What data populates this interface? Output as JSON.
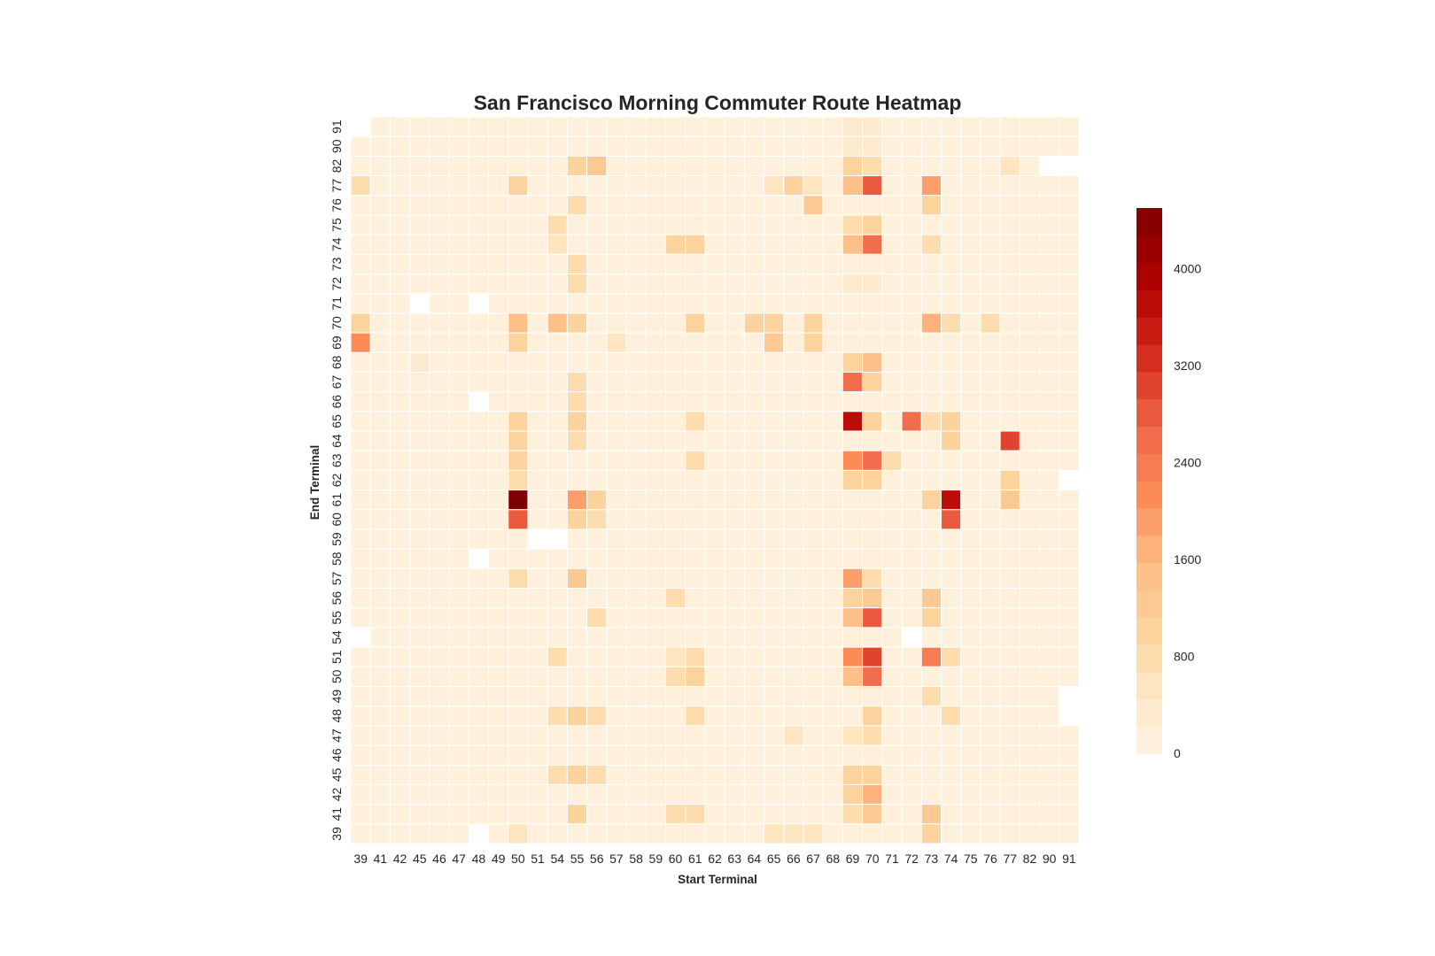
{
  "chart_data": {
    "type": "heatmap",
    "title": "San Francisco Morning Commuter Route Heatmap",
    "xlabel": "Start Terminal",
    "ylabel": "End Terminal",
    "x_categories": [
      "39",
      "41",
      "42",
      "45",
      "46",
      "47",
      "48",
      "49",
      "50",
      "51",
      "54",
      "55",
      "56",
      "57",
      "58",
      "59",
      "60",
      "61",
      "62",
      "63",
      "64",
      "65",
      "66",
      "67",
      "68",
      "69",
      "70",
      "71",
      "72",
      "73",
      "74",
      "75",
      "76",
      "77",
      "82",
      "90",
      "91"
    ],
    "y_categories": [
      "91",
      "90",
      "82",
      "77",
      "76",
      "75",
      "74",
      "73",
      "72",
      "71",
      "70",
      "69",
      "68",
      "67",
      "66",
      "65",
      "64",
      "63",
      "62",
      "61",
      "60",
      "59",
      "58",
      "57",
      "56",
      "55",
      "54",
      "51",
      "50",
      "49",
      "48",
      "47",
      "46",
      "45",
      "42",
      "41",
      "39"
    ],
    "default_value": 150,
    "cells_note": "row/column labels refer to y_categories / x_categories; null = empty cell",
    "overrides": [
      {
        "y": "91",
        "x": "45",
        "v": 150
      },
      {
        "y": "91",
        "x": "50",
        "v": 150
      },
      {
        "y": "91",
        "x": "69",
        "v": 250
      },
      {
        "y": "91",
        "x": "70",
        "v": 250
      },
      {
        "y": "90",
        "x": "39",
        "v": 150
      },
      {
        "y": "90",
        "x": "59",
        "v": 150
      },
      {
        "y": "90",
        "x": "65",
        "v": 150
      },
      {
        "y": "90",
        "x": "66",
        "v": 150
      },
      {
        "y": "90",
        "x": "67",
        "v": 150
      },
      {
        "y": "90",
        "x": "69",
        "v": 250
      },
      {
        "y": "90",
        "x": "70",
        "v": 250
      },
      {
        "y": "90",
        "x": "72",
        "v": 150
      },
      {
        "y": "90",
        "x": "76",
        "v": 150
      },
      {
        "y": "82",
        "x": "55",
        "v": 1100
      },
      {
        "y": "82",
        "x": "56",
        "v": 1300
      },
      {
        "y": "82",
        "x": "69",
        "v": 900
      },
      {
        "y": "82",
        "x": "70",
        "v": 700
      },
      {
        "y": "82",
        "x": "77",
        "v": 500
      },
      {
        "y": "77",
        "x": "39",
        "v": 800
      },
      {
        "y": "77",
        "x": "50",
        "v": 900
      },
      {
        "y": "77",
        "x": "65",
        "v": 600
      },
      {
        "y": "77",
        "x": "66",
        "v": 900
      },
      {
        "y": "77",
        "x": "67",
        "v": 600
      },
      {
        "y": "77",
        "x": "69",
        "v": 1500
      },
      {
        "y": "77",
        "x": "70",
        "v": 2700
      },
      {
        "y": "77",
        "x": "73",
        "v": 1800
      },
      {
        "y": "76",
        "x": "55",
        "v": 800
      },
      {
        "y": "76",
        "x": "67",
        "v": 1300
      },
      {
        "y": "76",
        "x": "73",
        "v": 1000
      },
      {
        "y": "76",
        "x": "90",
        "v": 150
      },
      {
        "y": "75",
        "x": "54",
        "v": 800
      },
      {
        "y": "75",
        "x": "69",
        "v": 800
      },
      {
        "y": "75",
        "x": "70",
        "v": 1100
      },
      {
        "y": "75",
        "x": "90",
        "v": 150
      },
      {
        "y": "74",
        "x": "54",
        "v": 600
      },
      {
        "y": "74",
        "x": "60",
        "v": 900
      },
      {
        "y": "74",
        "x": "61",
        "v": 900
      },
      {
        "y": "74",
        "x": "69",
        "v": 1500
      },
      {
        "y": "74",
        "x": "70",
        "v": 2600
      },
      {
        "y": "74",
        "x": "73",
        "v": 800
      },
      {
        "y": "73",
        "x": "55",
        "v": 700
      },
      {
        "y": "72",
        "x": "55",
        "v": 700
      },
      {
        "y": "72",
        "x": "69",
        "v": 350
      },
      {
        "y": "72",
        "x": "70",
        "v": 350
      },
      {
        "y": "71",
        "x": "45",
        "v": null
      },
      {
        "y": "71",
        "x": "48",
        "v": null
      },
      {
        "y": "70",
        "x": "39",
        "v": 900
      },
      {
        "y": "70",
        "x": "50",
        "v": 1400
      },
      {
        "y": "70",
        "x": "54",
        "v": 1500
      },
      {
        "y": "70",
        "x": "55",
        "v": 1100
      },
      {
        "y": "70",
        "x": "61",
        "v": 1100
      },
      {
        "y": "70",
        "x": "64",
        "v": 900
      },
      {
        "y": "70",
        "x": "65",
        "v": 1100
      },
      {
        "y": "70",
        "x": "67",
        "v": 900
      },
      {
        "y": "70",
        "x": "69",
        "v": 150
      },
      {
        "y": "70",
        "x": "70",
        "v": 150
      },
      {
        "y": "70",
        "x": "73",
        "v": 1700
      },
      {
        "y": "70",
        "x": "74",
        "v": 800
      },
      {
        "y": "70",
        "x": "76",
        "v": 700
      },
      {
        "y": "69",
        "x": "39",
        "v": 2100
      },
      {
        "y": "69",
        "x": "50",
        "v": 900
      },
      {
        "y": "69",
        "x": "65",
        "v": 1300
      },
      {
        "y": "69",
        "x": "67",
        "v": 900
      },
      {
        "y": "69",
        "x": "57",
        "v": 500
      },
      {
        "y": "69",
        "x": "69",
        "v": 150
      },
      {
        "y": "69",
        "x": "70",
        "v": 150
      },
      {
        "y": "69",
        "x": "90",
        "v": 150
      },
      {
        "y": "69",
        "x": "91",
        "v": 150
      },
      {
        "y": "68",
        "x": "45",
        "v": 400
      },
      {
        "y": "68",
        "x": "69",
        "v": 900
      },
      {
        "y": "68",
        "x": "70",
        "v": 1400
      },
      {
        "y": "67",
        "x": "55",
        "v": 800
      },
      {
        "y": "67",
        "x": "69",
        "v": 2500
      },
      {
        "y": "67",
        "x": "70",
        "v": 1100
      },
      {
        "y": "66",
        "x": "48",
        "v": null
      },
      {
        "y": "66",
        "x": "55",
        "v": 800
      },
      {
        "y": "65",
        "x": "50",
        "v": 1100
      },
      {
        "y": "65",
        "x": "55",
        "v": 1100
      },
      {
        "y": "65",
        "x": "61",
        "v": 800
      },
      {
        "y": "65",
        "x": "69",
        "v": 3600
      },
      {
        "y": "65",
        "x": "70",
        "v": 1100
      },
      {
        "y": "65",
        "x": "72",
        "v": 2500
      },
      {
        "y": "65",
        "x": "73",
        "v": 700
      },
      {
        "y": "65",
        "x": "74",
        "v": 1000
      },
      {
        "y": "65",
        "x": "91",
        "v": 150
      },
      {
        "y": "64",
        "x": "50",
        "v": 1100
      },
      {
        "y": "64",
        "x": "55",
        "v": 800
      },
      {
        "y": "64",
        "x": "74",
        "v": 900
      },
      {
        "y": "64",
        "x": "77",
        "v": 3000
      },
      {
        "y": "63",
        "x": "50",
        "v": 1000
      },
      {
        "y": "63",
        "x": "61",
        "v": 800
      },
      {
        "y": "63",
        "x": "69",
        "v": 2100
      },
      {
        "y": "63",
        "x": "70",
        "v": 2500
      },
      {
        "y": "63",
        "x": "71",
        "v": 800
      },
      {
        "y": "62",
        "x": "50",
        "v": 800
      },
      {
        "y": "62",
        "x": "69",
        "v": 900
      },
      {
        "y": "62",
        "x": "70",
        "v": 1100
      },
      {
        "y": "62",
        "x": "77",
        "v": 900
      },
      {
        "y": "62",
        "x": "91",
        "v": null
      },
      {
        "y": "62",
        "x": "90",
        "v": 150
      },
      {
        "y": "61",
        "x": "50",
        "v": 4500
      },
      {
        "y": "61",
        "x": "55",
        "v": 2000
      },
      {
        "y": "61",
        "x": "56",
        "v": 900
      },
      {
        "y": "61",
        "x": "73",
        "v": 900
      },
      {
        "y": "61",
        "x": "74",
        "v": 3800
      },
      {
        "y": "61",
        "x": "77",
        "v": 1200
      },
      {
        "y": "60",
        "x": "50",
        "v": 2700
      },
      {
        "y": "60",
        "x": "55",
        "v": 900
      },
      {
        "y": "60",
        "x": "56",
        "v": 700
      },
      {
        "y": "60",
        "x": "74",
        "v": 2800
      },
      {
        "y": "59",
        "x": "51",
        "v": null
      },
      {
        "y": "59",
        "x": "54",
        "v": null
      },
      {
        "y": "58",
        "x": "48",
        "v": null
      },
      {
        "y": "57",
        "x": "50",
        "v": 700
      },
      {
        "y": "57",
        "x": "55",
        "v": 1300
      },
      {
        "y": "57",
        "x": "69",
        "v": 1800
      },
      {
        "y": "57",
        "x": "70",
        "v": 700
      },
      {
        "y": "57",
        "x": "90",
        "v": 150
      },
      {
        "y": "56",
        "x": "60",
        "v": 800
      },
      {
        "y": "56",
        "x": "69",
        "v": 900
      },
      {
        "y": "56",
        "x": "70",
        "v": 1300
      },
      {
        "y": "56",
        "x": "73",
        "v": 1300
      },
      {
        "y": "55",
        "x": "56",
        "v": 700
      },
      {
        "y": "55",
        "x": "69",
        "v": 1400
      },
      {
        "y": "55",
        "x": "70",
        "v": 2900
      },
      {
        "y": "55",
        "x": "73",
        "v": 1100
      },
      {
        "y": "54",
        "x": "39",
        "v": null
      },
      {
        "y": "54",
        "x": "72",
        "v": null
      },
      {
        "y": "51",
        "x": "54",
        "v": 700
      },
      {
        "y": "51",
        "x": "60",
        "v": 600
      },
      {
        "y": "51",
        "x": "61",
        "v": 700
      },
      {
        "y": "51",
        "x": "69",
        "v": 2200
      },
      {
        "y": "51",
        "x": "70",
        "v": 3100
      },
      {
        "y": "51",
        "x": "73",
        "v": 2400
      },
      {
        "y": "51",
        "x": "74",
        "v": 800
      },
      {
        "y": "50",
        "x": "60",
        "v": 700
      },
      {
        "y": "50",
        "x": "61",
        "v": 1000
      },
      {
        "y": "50",
        "x": "69",
        "v": 1400
      },
      {
        "y": "50",
        "x": "70",
        "v": 2600
      },
      {
        "y": "49",
        "x": "73",
        "v": 800
      },
      {
        "y": "49",
        "x": "90",
        "v": 150
      },
      {
        "y": "49",
        "x": "91",
        "v": null
      },
      {
        "y": "48",
        "x": "54",
        "v": 700
      },
      {
        "y": "48",
        "x": "55",
        "v": 1000
      },
      {
        "y": "48",
        "x": "56",
        "v": 700
      },
      {
        "y": "48",
        "x": "61",
        "v": 700
      },
      {
        "y": "48",
        "x": "70",
        "v": 1000
      },
      {
        "y": "48",
        "x": "74",
        "v": 800
      },
      {
        "y": "48",
        "x": "91",
        "v": null
      },
      {
        "y": "47",
        "x": "66",
        "v": 600
      },
      {
        "y": "47",
        "x": "69",
        "v": 600
      },
      {
        "y": "47",
        "x": "70",
        "v": 800
      },
      {
        "y": "47",
        "x": "90",
        "v": 150
      },
      {
        "y": "45",
        "x": "54",
        "v": 700
      },
      {
        "y": "45",
        "x": "55",
        "v": 1000
      },
      {
        "y": "45",
        "x": "56",
        "v": 800
      },
      {
        "y": "45",
        "x": "69",
        "v": 900
      },
      {
        "y": "45",
        "x": "70",
        "v": 1100
      },
      {
        "y": "42",
        "x": "69",
        "v": 1000
      },
      {
        "y": "42",
        "x": "70",
        "v": 1600
      },
      {
        "y": "41",
        "x": "55",
        "v": 1000
      },
      {
        "y": "41",
        "x": "60",
        "v": 700
      },
      {
        "y": "41",
        "x": "61",
        "v": 700
      },
      {
        "y": "41",
        "x": "69",
        "v": 700
      },
      {
        "y": "41",
        "x": "70",
        "v": 1300
      },
      {
        "y": "41",
        "x": "73",
        "v": 1200
      },
      {
        "y": "39",
        "x": "48",
        "v": null
      },
      {
        "y": "39",
        "x": "50",
        "v": 500
      },
      {
        "y": "39",
        "x": "65",
        "v": 500
      },
      {
        "y": "39",
        "x": "66",
        "v": 500
      },
      {
        "y": "39",
        "x": "67",
        "v": 500
      },
      {
        "y": "39",
        "x": "73",
        "v": 900
      },
      {
        "y": "39",
        "x": "90",
        "v": 150
      },
      {
        "y": "39",
        "x": "91",
        "v": 150
      },
      {
        "y": "91",
        "x": "39",
        "v": null
      },
      {
        "y": "82",
        "x": "90",
        "v": null
      },
      {
        "y": "82",
        "x": "91",
        "v": null
      }
    ],
    "colorbar": {
      "min": 0,
      "max": 4500,
      "ticks": [
        0,
        800,
        1600,
        2400,
        3200,
        4000
      ],
      "colormap": "OrRd"
    }
  }
}
